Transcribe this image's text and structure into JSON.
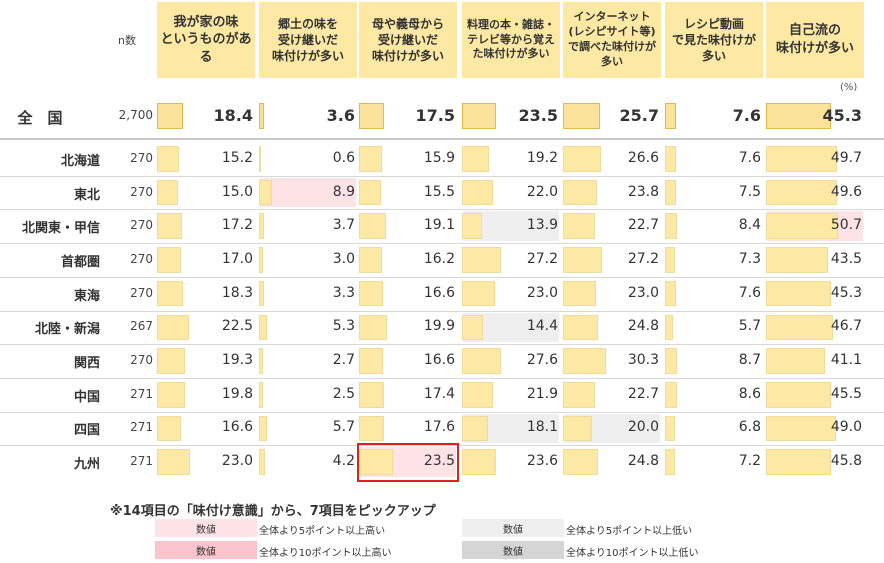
{
  "header": {
    "n_label": "n数",
    "columns": [
      {
        "key": "own_home",
        "label": "我が家の味\nというものがある"
      },
      {
        "key": "hometown",
        "label": "郷土の味を\n受け継いだ\n味付けが多い"
      },
      {
        "key": "mother",
        "label": "母や義母から\n受け継いだ\n味付けが多い"
      },
      {
        "key": "media",
        "label": "料理の本・雑誌・\nテレビ等から覚え\nた味付けが多い"
      },
      {
        "key": "internet",
        "label": "インターネット\n(レシピサイト等)\nで調べた味付けが\n多い"
      },
      {
        "key": "video",
        "label": "レシピ動画\nで見た味付けが\n多い"
      },
      {
        "key": "self",
        "label": "自己流の\n味付けが多い"
      }
    ],
    "unit": "(%)"
  },
  "chart_data": {
    "type": "table",
    "national": {
      "region": "全　国",
      "n": "2,700",
      "values": [
        "18.4",
        "3.6",
        "17.5",
        "23.5",
        "25.7",
        "7.6",
        "45.3"
      ]
    },
    "rows": [
      {
        "region": "北海道",
        "n": "270",
        "values": [
          "15.2",
          "0.6",
          "15.9",
          "19.2",
          "26.6",
          "7.6",
          "49.7"
        ],
        "marks": [
          null,
          null,
          null,
          null,
          null,
          null,
          null
        ]
      },
      {
        "region": "東北",
        "n": "270",
        "values": [
          "15.0",
          "8.9",
          "15.5",
          "22.0",
          "23.8",
          "7.5",
          "49.6"
        ],
        "marks": [
          null,
          "hi5",
          null,
          null,
          null,
          null,
          null
        ]
      },
      {
        "region": "北関東・甲信",
        "n": "270",
        "values": [
          "17.2",
          "3.7",
          "19.1",
          "13.9",
          "22.7",
          "8.4",
          "50.7"
        ],
        "marks": [
          null,
          null,
          null,
          "lo5",
          null,
          null,
          "hi5"
        ]
      },
      {
        "region": "首都圏",
        "n": "270",
        "values": [
          "17.0",
          "3.0",
          "16.2",
          "27.2",
          "27.2",
          "7.3",
          "43.5"
        ],
        "marks": [
          null,
          null,
          null,
          null,
          null,
          null,
          null
        ]
      },
      {
        "region": "東海",
        "n": "270",
        "values": [
          "18.3",
          "3.3",
          "16.6",
          "23.0",
          "23.0",
          "7.6",
          "45.3"
        ],
        "marks": [
          null,
          null,
          null,
          null,
          null,
          null,
          null
        ]
      },
      {
        "region": "北陸・新潟",
        "n": "267",
        "values": [
          "22.5",
          "5.3",
          "19.9",
          "14.4",
          "24.8",
          "5.7",
          "46.7"
        ],
        "marks": [
          null,
          null,
          null,
          "lo5",
          null,
          null,
          null
        ]
      },
      {
        "region": "関西",
        "n": "270",
        "values": [
          "19.3",
          "2.7",
          "16.6",
          "27.6",
          "30.3",
          "8.7",
          "41.1"
        ],
        "marks": [
          null,
          null,
          null,
          null,
          null,
          null,
          null
        ]
      },
      {
        "region": "中国",
        "n": "271",
        "values": [
          "19.8",
          "2.5",
          "17.4",
          "21.9",
          "22.7",
          "8.6",
          "45.5"
        ],
        "marks": [
          null,
          null,
          null,
          null,
          null,
          null,
          null
        ]
      },
      {
        "region": "四国",
        "n": "271",
        "values": [
          "16.6",
          "5.7",
          "17.6",
          "18.1",
          "20.0",
          "6.8",
          "49.0"
        ],
        "marks": [
          null,
          null,
          null,
          "lo5",
          "lo5",
          null,
          null
        ]
      },
      {
        "region": "九州",
        "n": "271",
        "values": [
          "23.0",
          "4.2",
          "23.5",
          "23.6",
          "24.8",
          "7.2",
          "45.8"
        ],
        "marks": [
          null,
          null,
          "hi5",
          null,
          null,
          null,
          null
        ],
        "highlight_col": 2
      }
    ]
  },
  "footer": {
    "note": "※14項目の「味付け意識」から、7項目をピックアップ",
    "legend": [
      {
        "box": "数値",
        "text": "全体より5ポイント以上高い",
        "style": "hi5"
      },
      {
        "box": "数値",
        "text": "全体より10ポイント以上高い",
        "style": "hi10"
      },
      {
        "box": "数値",
        "text": "全体より5ポイント以上低い",
        "style": "lo5"
      },
      {
        "box": "数値",
        "text": "全体より10ポイント以上低い",
        "style": "lo10"
      }
    ]
  },
  "colors": {
    "bar": "#fde9a4",
    "hi5": "#fde2e6",
    "hi10": "#f9c4cc",
    "lo5": "#efefef",
    "lo10": "#d5d5d5",
    "highlight_border": "#e02020"
  }
}
